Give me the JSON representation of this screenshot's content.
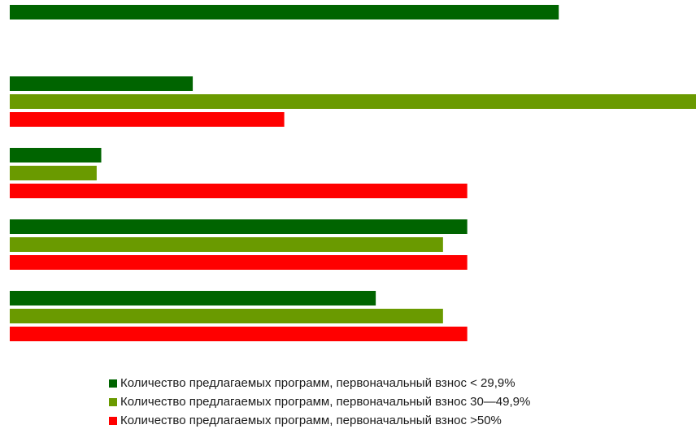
{
  "chart_data": {
    "type": "bar",
    "orientation": "horizontal",
    "categories": [
      "",
      "",
      "",
      "",
      ""
    ],
    "xlim": [
      0,
      15
    ],
    "grid": false,
    "legend_position": "bottom",
    "series": [
      {
        "name": "Количество предлагаемых программ, первоначальный взнос < 29,9%",
        "color": "#006400",
        "values": [
          12,
          4,
          2,
          10,
          8
        ]
      },
      {
        "name": "Количество предлагаемых программ, первоначальный взнос 30—49,9%",
        "color": "#6a9a00",
        "values": [
          null,
          15,
          1.9,
          9.47,
          9.47
        ]
      },
      {
        "name": "Количество предлагаемых программ, первоначальный взнос >50%",
        "color": "#ff0000",
        "values": [
          null,
          6,
          10,
          10,
          10
        ]
      }
    ]
  }
}
